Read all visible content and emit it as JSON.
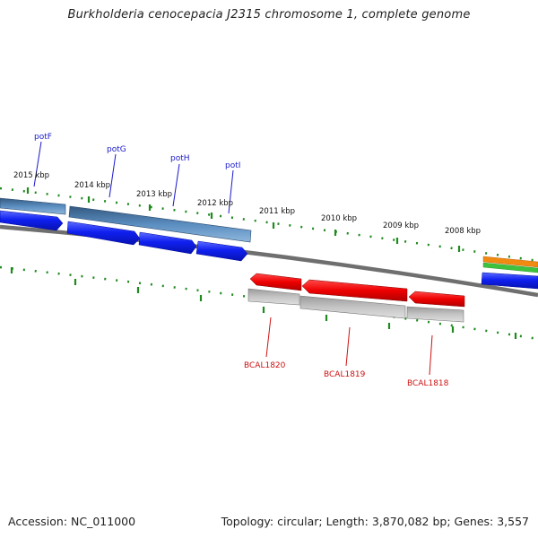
{
  "title": "Burkholderia cenocepacia J2315 chromosome 1, complete genome",
  "footer": {
    "accession_label": "Accession: NC_011000",
    "summary": "Topology: circular; Length: 3,870,082 bp; Genes: 3,557"
  },
  "ruler_labels": [
    "2015 kbp",
    "2014 kbp",
    "2013 kbp",
    "2012 kbp",
    "2011 kbp",
    "2010 kbp",
    "2009 kbp",
    "2008 kbp"
  ],
  "forward_genes": [
    "potF",
    "potG",
    "potH",
    "potI"
  ],
  "reverse_genes": [
    "BCAL1820",
    "BCAL1819",
    "BCAL1818"
  ],
  "colors": {
    "backbone": "#6f6f6f",
    "tick": "#1f8a1f",
    "cds_forward": "#0a18e8",
    "cds_reverse": "#e00000",
    "feature_forward": "#4a7db0",
    "feature_reverse": "#a8a8a8",
    "label_forward": "#1a1acc",
    "label_reverse": "#cc1111",
    "extra_orange": "#f08a10",
    "extra_green": "#3ec23e"
  }
}
